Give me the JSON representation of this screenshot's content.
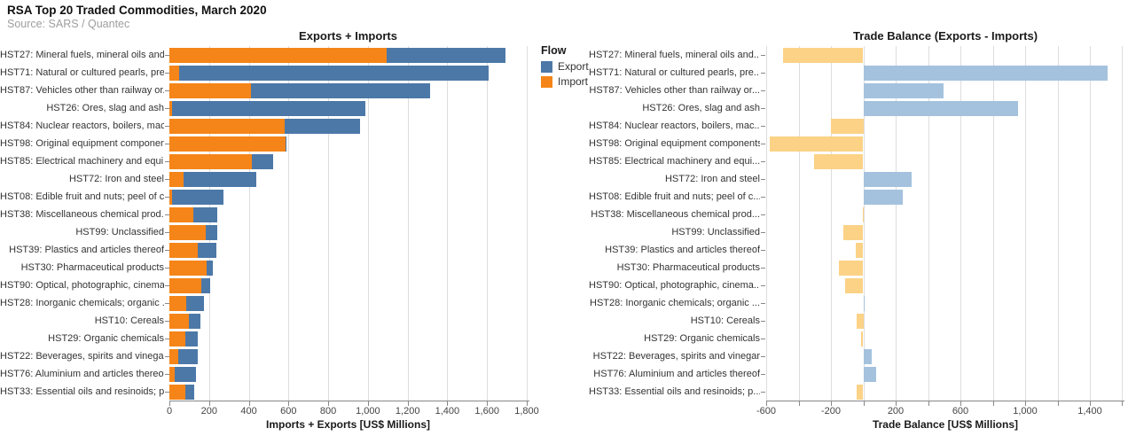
{
  "header": {
    "title": "RSA Top 20 Traded Commodities, March 2020",
    "source": "Source: SARS / Quantec"
  },
  "legend": {
    "title": "Flow",
    "items": [
      {
        "label": "Export",
        "color": "#4c78a8"
      },
      {
        "label": "Import",
        "color": "#f58518"
      }
    ]
  },
  "chart_data": [
    {
      "type": "bar",
      "orientation": "horizontal",
      "stacked": true,
      "title": "Exports + Imports",
      "xlabel": "Imports + Exports [US$ Millions]",
      "xlim": [
        0,
        1800
      ],
      "xtick_step": 200,
      "grid": true,
      "legend_position": "right",
      "categories": [
        "HST27: Mineral fuels, mineral oils and...",
        "HST71: Natural or cultured pearls, pre...",
        "HST87: Vehicles other than railway or...",
        "HST26: Ores, slag and ash",
        "HST84: Nuclear reactors, boilers, mac...",
        "HST98: Original equipment components",
        "HST85: Electrical machinery and equi...",
        "HST72: Iron and steel",
        "HST08: Edible fruit and nuts; peel of c...",
        "HST38: Miscellaneous chemical prod...",
        "HST99: Unclassified",
        "HST39: Plastics and articles thereof",
        "HST30: Pharmaceutical products",
        "HST90: Optical, photographic, cinema...",
        "HST28: Inorganic chemicals; organic ...",
        "HST10: Cereals",
        "HST29: Organic chemicals",
        "HST22: Beverages, spirits and vinegar",
        "HST76: Aluminium and articles thereof",
        "HST33: Essential oils and resinoids; p..."
      ],
      "series": [
        {
          "name": "Import",
          "color": "#f58518",
          "values": [
            1095,
            50,
            410,
            15,
            580,
            585,
            415,
            70,
            15,
            121,
            181,
            144,
            186,
            160,
            84,
            98,
            80,
            45,
            28,
            82
          ]
        },
        {
          "name": "Export",
          "color": "#4c78a8",
          "values": [
            600,
            1560,
            905,
            970,
            380,
            5,
            110,
            370,
            258,
            120,
            60,
            95,
            33,
            46,
            89,
            57,
            64,
            97,
            107,
            43
          ]
        }
      ]
    },
    {
      "type": "bar",
      "orientation": "horizontal",
      "title": "Trade Balance (Exports - Imports)",
      "xlabel": "Trade Balance [US$ Millions]",
      "xlim": [
        -600,
        1614
      ],
      "grid_step": 200,
      "xtick_labels": [
        -600,
        -200,
        200,
        600,
        1000,
        1400
      ],
      "grid": true,
      "positive_color": "#a4c2de",
      "negative_color": "#fbd286",
      "categories": [
        "HST27: Mineral fuels, mineral oils and...",
        "HST71: Natural or cultured pearls, pre...",
        "HST87: Vehicles other than railway or...",
        "HST26: Ores, slag and ash",
        "HST84: Nuclear reactors, boilers, mac...",
        "HST98: Original equipment components",
        "HST85: Electrical machinery and equi...",
        "HST72: Iron and steel",
        "HST08: Edible fruit and nuts; peel of c...",
        "HST38: Miscellaneous chemical prod...",
        "HST99: Unclassified",
        "HST39: Plastics and articles thereof",
        "HST30: Pharmaceutical products",
        "HST90: Optical, photographic, cinema...",
        "HST28: Inorganic chemicals; organic ...",
        "HST10: Cereals",
        "HST29: Organic chemicals",
        "HST22: Beverages, spirits and vinegar",
        "HST76: Aluminium and articles thereof",
        "HST33: Essential oils and resinoids; p..."
      ],
      "values": [
        -495,
        1510,
        495,
        955,
        -200,
        -580,
        -305,
        300,
        243,
        -1,
        -121,
        -49,
        -153,
        -114,
        5,
        -41,
        -16,
        52,
        79,
        -39
      ]
    }
  ]
}
